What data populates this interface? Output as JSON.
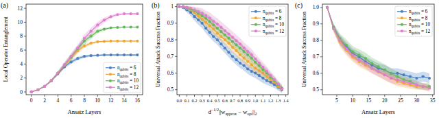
{
  "chart_data": [
    {
      "type": "line",
      "title": "(a)",
      "x_label": "Ansatz Layers",
      "y_label": "Local Operator Entanglement",
      "x": [
        0,
        1,
        2,
        3,
        4,
        5,
        6,
        7,
        8,
        9,
        10,
        11,
        12,
        13,
        14,
        15,
        16
      ],
      "xlim": [
        -0.8,
        16.8
      ],
      "ylim": [
        -0.4,
        12.6
      ],
      "xticks": [
        0,
        2,
        4,
        6,
        8,
        10,
        12,
        14,
        16
      ],
      "yticks": [
        0,
        2,
        4,
        6,
        8,
        10,
        12
      ],
      "grid": false,
      "legend": "lower right",
      "marker": "circle",
      "line_style": "solid",
      "series": [
        {
          "name": "nqubits = 6",
          "color": "#4a7fc1",
          "values": [
            0,
            0.3,
            0.8,
            1.6,
            2.6,
            3.6,
            4.3,
            4.8,
            5.1,
            5.2,
            5.25,
            5.3,
            5.3,
            5.3,
            5.3,
            5.3,
            5.3
          ],
          "errors": [
            0,
            0.05,
            0.1,
            0.15,
            0.2,
            0.25,
            0.3,
            0.25,
            0.2,
            0.15,
            0.1,
            0.1,
            0.1,
            0.1,
            0.1,
            0.1,
            0.1
          ]
        },
        {
          "name": "nqubits = 8",
          "color": "#f2a630",
          "values": [
            0,
            0.3,
            0.8,
            1.6,
            2.7,
            3.8,
            4.9,
            5.9,
            6.6,
            7.0,
            7.2,
            7.25,
            7.3,
            7.3,
            7.3,
            7.3,
            7.3
          ],
          "errors": [
            0,
            0.05,
            0.1,
            0.15,
            0.25,
            0.3,
            0.4,
            0.4,
            0.3,
            0.2,
            0.15,
            0.1,
            0.1,
            0.1,
            0.1,
            0.1,
            0.1
          ]
        },
        {
          "name": "nqubits = 10",
          "color": "#62b85a",
          "values": [
            0,
            0.3,
            0.8,
            1.6,
            2.7,
            3.9,
            5.0,
            6.2,
            7.3,
            8.0,
            8.7,
            9.0,
            9.2,
            9.25,
            9.3,
            9.3,
            9.3
          ],
          "errors": [
            0,
            0.05,
            0.1,
            0.15,
            0.25,
            0.35,
            0.45,
            0.5,
            0.5,
            0.4,
            0.3,
            0.2,
            0.15,
            0.1,
            0.1,
            0.1,
            0.1
          ]
        },
        {
          "name": "nqubits = 12",
          "color": "#e07dcc",
          "values": [
            0,
            0.3,
            0.8,
            1.6,
            2.7,
            3.9,
            5.1,
            6.3,
            7.7,
            8.7,
            9.6,
            10.3,
            10.8,
            11.1,
            11.2,
            11.2,
            11.2
          ],
          "errors": [
            0,
            0.05,
            0.1,
            0.15,
            0.25,
            0.35,
            0.45,
            0.5,
            0.55,
            0.5,
            0.45,
            0.35,
            0.25,
            0.15,
            0.1,
            0.1,
            0.1
          ]
        }
      ]
    },
    {
      "type": "line",
      "title": "(b)",
      "x_label": [
        "d",
        "−1/2",
        "||w",
        "approx",
        " − w",
        "opt",
        "||",
        "2"
      ],
      "y_label": "Universal Attack Success Fraction",
      "x": [
        0,
        0.05,
        0.1,
        0.15,
        0.2,
        0.25,
        0.3,
        0.35,
        0.4,
        0.45,
        0.5,
        0.55,
        0.6,
        0.65,
        0.7,
        0.75,
        0.8,
        0.85,
        0.9,
        0.95,
        1.0,
        1.05,
        1.1,
        1.15,
        1.2,
        1.25,
        1.3,
        1.35
      ],
      "xlim": [
        -0.03,
        1.43
      ],
      "ylim": [
        0.47,
        1.015
      ],
      "xticks": [
        {
          "value": 0,
          "label": "0.0"
        },
        0.1,
        0.2,
        0.3,
        0.4,
        0.5,
        0.6,
        0.7,
        0.8,
        0.9,
        {
          "value": 1,
          "label": "1.0"
        },
        1.1,
        1.2,
        1.3,
        1.4
      ],
      "yticks": [
        0.5,
        0.6,
        0.7,
        0.8,
        0.9,
        1
      ],
      "grid": false,
      "legend": "upper right",
      "marker": "circle",
      "line_style": "solid",
      "series": [
        {
          "name": "nqubits = 6",
          "color": "#4a7fc1",
          "values": [
            1,
            0.995,
            0.98,
            0.965,
            0.94,
            0.92,
            0.9,
            0.87,
            0.845,
            0.82,
            0.8,
            0.775,
            0.75,
            0.725,
            0.7,
            0.68,
            0.66,
            0.645,
            0.625,
            0.61,
            0.6,
            0.585,
            0.57,
            0.555,
            0.545,
            0.53,
            0.515,
            0.5
          ],
          "errors": [
            0,
            0.01,
            0.015,
            0.02,
            0.025,
            0.03,
            0.03,
            0.03,
            0.03,
            0.03,
            0.03,
            0.03,
            0.03,
            0.03,
            0.03,
            0.03,
            0.03,
            0.03,
            0.03,
            0.03,
            0.03,
            0.03,
            0.03,
            0.025,
            0.025,
            0.02,
            0.02,
            0.02
          ]
        },
        {
          "name": "nqubits = 8",
          "color": "#f2a630",
          "values": [
            1,
            1,
            0.99,
            0.98,
            0.965,
            0.945,
            0.925,
            0.905,
            0.885,
            0.865,
            0.84,
            0.82,
            0.8,
            0.78,
            0.755,
            0.735,
            0.71,
            0.69,
            0.67,
            0.65,
            0.63,
            0.615,
            0.6,
            0.58,
            0.56,
            0.545,
            0.52,
            0.505
          ],
          "errors": [
            0,
            0.005,
            0.01,
            0.015,
            0.02,
            0.025,
            0.03,
            0.03,
            0.03,
            0.03,
            0.03,
            0.03,
            0.03,
            0.03,
            0.03,
            0.03,
            0.03,
            0.03,
            0.03,
            0.03,
            0.03,
            0.03,
            0.03,
            0.025,
            0.025,
            0.02,
            0.02,
            0.02
          ]
        },
        {
          "name": "nqubits = 10",
          "color": "#62b85a",
          "values": [
            1,
            1,
            0.995,
            0.985,
            0.975,
            0.96,
            0.945,
            0.93,
            0.91,
            0.89,
            0.87,
            0.85,
            0.83,
            0.81,
            0.79,
            0.77,
            0.75,
            0.73,
            0.71,
            0.69,
            0.665,
            0.645,
            0.62,
            0.6,
            0.575,
            0.555,
            0.53,
            0.51
          ],
          "errors": [
            0,
            0.005,
            0.01,
            0.015,
            0.02,
            0.025,
            0.03,
            0.03,
            0.035,
            0.035,
            0.035,
            0.035,
            0.035,
            0.035,
            0.035,
            0.035,
            0.035,
            0.035,
            0.035,
            0.035,
            0.03,
            0.03,
            0.03,
            0.03,
            0.025,
            0.025,
            0.02,
            0.02
          ]
        },
        {
          "name": "nqubits = 12",
          "color": "#e07dcc",
          "values": [
            1,
            1,
            0.995,
            0.99,
            0.98,
            0.97,
            0.96,
            0.945,
            0.93,
            0.91,
            0.895,
            0.875,
            0.855,
            0.835,
            0.815,
            0.795,
            0.775,
            0.75,
            0.73,
            0.71,
            0.685,
            0.66,
            0.635,
            0.61,
            0.585,
            0.56,
            0.535,
            0.505
          ],
          "errors": [
            0,
            0.005,
            0.01,
            0.015,
            0.02,
            0.025,
            0.03,
            0.03,
            0.035,
            0.035,
            0.035,
            0.035,
            0.035,
            0.035,
            0.035,
            0.035,
            0.035,
            0.035,
            0.035,
            0.035,
            0.03,
            0.03,
            0.03,
            0.03,
            0.025,
            0.025,
            0.02,
            0.02
          ]
        }
      ]
    },
    {
      "type": "line",
      "title": "(c)",
      "x_label": "Ansatz Layers",
      "y_label": "Universal Attack Success Fraction",
      "x": [
        2,
        4,
        6,
        8,
        10,
        12,
        14,
        16,
        18,
        20,
        22,
        24,
        26,
        28,
        30,
        32,
        34
      ],
      "xlim": [
        0.5,
        35.5
      ],
      "ylim": [
        0.47,
        1.02
      ],
      "xticks": [
        5,
        10,
        15,
        20,
        25,
        30,
        35
      ],
      "yticks": [
        0.5,
        0.6,
        0.7,
        0.8,
        0.9,
        {
          "value": 1,
          "label": "1.0"
        }
      ],
      "grid": false,
      "legend": "upper right",
      "marker": "circle",
      "line_style": "solid",
      "series": [
        {
          "name": "nqubits = 6",
          "color": "#4a7fc1",
          "values": [
            1,
            0.88,
            0.8,
            0.76,
            0.72,
            0.7,
            0.67,
            0.65,
            0.63,
            0.62,
            0.6,
            0.6,
            0.59,
            0.58,
            0.57,
            0.58,
            0.57
          ],
          "errors": [
            0,
            0.02,
            0.03,
            0.03,
            0.03,
            0.03,
            0.03,
            0.03,
            0.03,
            0.03,
            0.03,
            0.03,
            0.03,
            0.03,
            0.03,
            0.03,
            0.03
          ]
        },
        {
          "name": "nqubits = 8",
          "color": "#f2a630",
          "values": [
            1,
            0.87,
            0.79,
            0.74,
            0.7,
            0.67,
            0.65,
            0.63,
            0.61,
            0.59,
            0.57,
            0.55,
            0.54,
            0.53,
            0.52,
            0.52,
            0.51
          ],
          "errors": [
            0,
            0.02,
            0.03,
            0.03,
            0.03,
            0.03,
            0.03,
            0.03,
            0.03,
            0.03,
            0.03,
            0.03,
            0.025,
            0.025,
            0.02,
            0.02,
            0.02
          ]
        },
        {
          "name": "nqubits = 10",
          "color": "#62b85a",
          "values": [
            1,
            0.88,
            0.81,
            0.77,
            0.73,
            0.71,
            0.69,
            0.66,
            0.64,
            0.62,
            0.6,
            0.58,
            0.56,
            0.55,
            0.53,
            0.52,
            0.52
          ],
          "errors": [
            0,
            0.02,
            0.03,
            0.035,
            0.035,
            0.035,
            0.035,
            0.035,
            0.035,
            0.035,
            0.03,
            0.03,
            0.03,
            0.025,
            0.025,
            0.02,
            0.02
          ]
        },
        {
          "name": "nqubits = 12",
          "color": "#e07dcc",
          "values": [
            1,
            0.87,
            0.8,
            0.75,
            0.71,
            0.68,
            0.66,
            0.63,
            0.61,
            0.59,
            0.57,
            0.56,
            0.55,
            0.54,
            0.53,
            0.52,
            0.51
          ],
          "errors": [
            0,
            0.02,
            0.03,
            0.03,
            0.03,
            0.03,
            0.03,
            0.03,
            0.03,
            0.03,
            0.03,
            0.03,
            0.025,
            0.025,
            0.02,
            0.02,
            0.02
          ]
        }
      ]
    }
  ]
}
